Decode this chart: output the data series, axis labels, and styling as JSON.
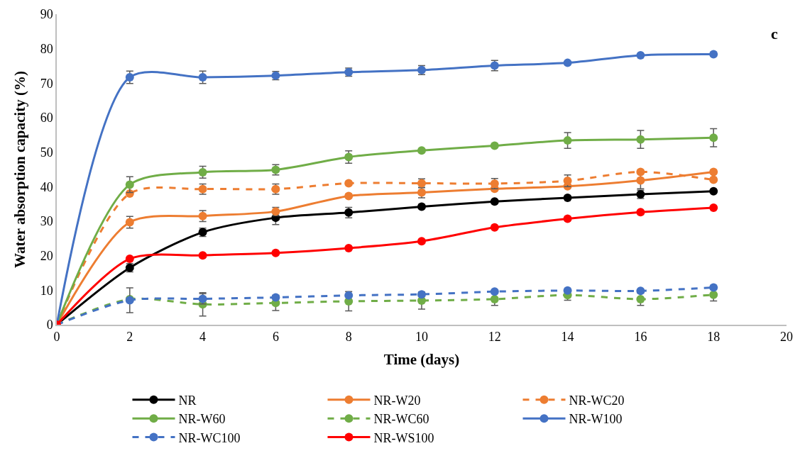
{
  "chart_data": {
    "type": "line",
    "xlabel": "Time (days)",
    "ylabel": "Water absorption capacity (%)",
    "x": [
      0,
      2,
      4,
      6,
      8,
      10,
      12,
      14,
      16,
      18
    ],
    "xlim": [
      0,
      20
    ],
    "xticks": [
      0,
      2,
      4,
      6,
      8,
      10,
      12,
      14,
      16,
      18,
      20
    ],
    "ylim": [
      0,
      90
    ],
    "yticks": [
      0,
      10,
      20,
      30,
      40,
      50,
      60,
      70,
      80,
      90
    ],
    "grid": false,
    "legend": "bottom",
    "marker": "circle",
    "annotations": [
      "c"
    ],
    "series": [
      {
        "name": "NR",
        "color": "#000000",
        "line_style": "solid",
        "values": [
          0,
          16.5,
          26.8,
          31,
          32.5,
          34.2,
          35.7,
          36.8,
          37.8,
          38.7
        ],
        "errors": [
          null,
          1.2,
          1.2,
          2.0,
          1.5,
          null,
          null,
          null,
          1.2,
          null
        ]
      },
      {
        "name": "NR-W20",
        "color": "#ed7d31",
        "line_style": "solid",
        "values": [
          0,
          29.7,
          31.5,
          32.8,
          37.3,
          38.3,
          39.4,
          40.1,
          41.8,
          44.3
        ],
        "errors": [
          null,
          1.7,
          1.6,
          1.2,
          null,
          1.5,
          null,
          null,
          2.4,
          null
        ]
      },
      {
        "name": "NR-WC20",
        "color": "#ed7d31",
        "line_style": "dashed",
        "values": [
          0,
          38,
          39.3,
          39.3,
          41,
          41,
          40.9,
          41.7,
          44.3,
          42
        ],
        "errors": [
          null,
          null,
          1.5,
          1.5,
          null,
          1.3,
          1.5,
          1.7,
          null,
          null
        ]
      },
      {
        "name": "NR-W60",
        "color": "#70ad47",
        "line_style": "solid",
        "values": [
          0,
          40.6,
          44.2,
          44.9,
          48.6,
          50.5,
          51.9,
          53.4,
          53.7,
          54.2
        ],
        "errors": [
          null,
          2.3,
          1.7,
          1.5,
          1.8,
          null,
          null,
          2.3,
          2.6,
          2.6
        ]
      },
      {
        "name": "NR-WC60",
        "color": "#70ad47",
        "line_style": "dashed",
        "values": [
          0,
          7.4,
          5.9,
          6.3,
          6.8,
          7.0,
          7.4,
          8.6,
          7.4,
          8.7
        ],
        "errors": [
          null,
          null,
          3.4,
          2.2,
          2.8,
          2.5,
          1.8,
          1.5,
          1.8,
          1.8
        ]
      },
      {
        "name": "NR-W100",
        "color": "#4472c4",
        "line_style": "solid",
        "values": [
          0,
          71.7,
          71.7,
          72.2,
          73.2,
          73.8,
          75.1,
          75.9,
          78.1,
          78.4
        ],
        "errors": [
          null,
          1.8,
          1.8,
          1.2,
          1.2,
          1.3,
          1.5,
          null,
          null,
          null
        ]
      },
      {
        "name": "NR-WC100",
        "color": "#4472c4",
        "line_style": "dashed",
        "values": [
          0,
          7.1,
          7.5,
          7.9,
          8.5,
          8.8,
          9.6,
          9.9,
          9.8,
          10.8
        ],
        "errors": [
          null,
          3.6,
          1.5,
          null,
          null,
          null,
          null,
          null,
          null,
          null
        ]
      },
      {
        "name": "NR-WS100",
        "color": "#ff0000",
        "line_style": "solid",
        "values": [
          0,
          19.1,
          20.1,
          20.8,
          22.2,
          24.2,
          28.2,
          30.7,
          32.6,
          33.9
        ]
      }
    ]
  }
}
